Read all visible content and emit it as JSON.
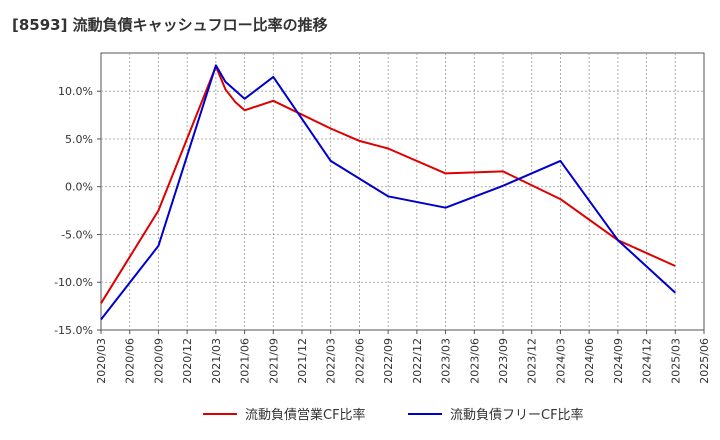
{
  "chart_data": {
    "type": "line",
    "title": "[8593]  流動負債キャッシュフロー比率の推移",
    "x": [
      "2020/03",
      "2020/06",
      "2020/09",
      "2020/12",
      "2021/03",
      "2021/06",
      "2021/09",
      "2021/12",
      "2022/03",
      "2022/06",
      "2022/09",
      "2022/12",
      "2023/03",
      "2023/06",
      "2023/09",
      "2023/12",
      "2024/03",
      "2024/06",
      "2024/09",
      "2024/12",
      "2025/03",
      "2025/06"
    ],
    "y_ticks": [
      "10.0%",
      "5.0%",
      "0.0%",
      "-5.0%",
      "-10.0%",
      "-15.0%"
    ],
    "ylim": [
      -15,
      14
    ],
    "y_tick_values": [
      10,
      5,
      0,
      -5,
      -10,
      -15
    ],
    "grid": true,
    "legend_position": "bottom",
    "series": [
      {
        "name": "流動負債営業CF比率",
        "color": "#dd0000",
        "points": [
          [
            "2020/03",
            -12.2
          ],
          [
            "2020/09",
            -2.5
          ],
          [
            "2021/03",
            12.6
          ],
          [
            "2021/04",
            10.2
          ],
          [
            "2021/05",
            8.9
          ],
          [
            "2021/06",
            8.0
          ],
          [
            "2021/09",
            9.0
          ],
          [
            "2022/03",
            6.1
          ],
          [
            "2022/06",
            4.8
          ],
          [
            "2022/09",
            4.0
          ],
          [
            "2023/03",
            1.4
          ],
          [
            "2023/09",
            1.6
          ],
          [
            "2024/03",
            -1.3
          ],
          [
            "2024/09",
            -5.6
          ],
          [
            "2025/03",
            -8.3
          ]
        ]
      },
      {
        "name": "流動負債フリーCF比率",
        "color": "#0000cc",
        "points": [
          [
            "2020/03",
            -13.9
          ],
          [
            "2020/09",
            -6.2
          ],
          [
            "2021/03",
            12.7
          ],
          [
            "2021/04",
            11.0
          ],
          [
            "2021/06",
            9.2
          ],
          [
            "2021/09",
            11.5
          ],
          [
            "2022/03",
            2.7
          ],
          [
            "2022/09",
            -1.0
          ],
          [
            "2023/03",
            -2.2
          ],
          [
            "2023/09",
            0.1
          ],
          [
            "2024/03",
            2.7
          ],
          [
            "2024/09",
            -5.6
          ],
          [
            "2025/03",
            -11.1
          ]
        ]
      }
    ]
  }
}
